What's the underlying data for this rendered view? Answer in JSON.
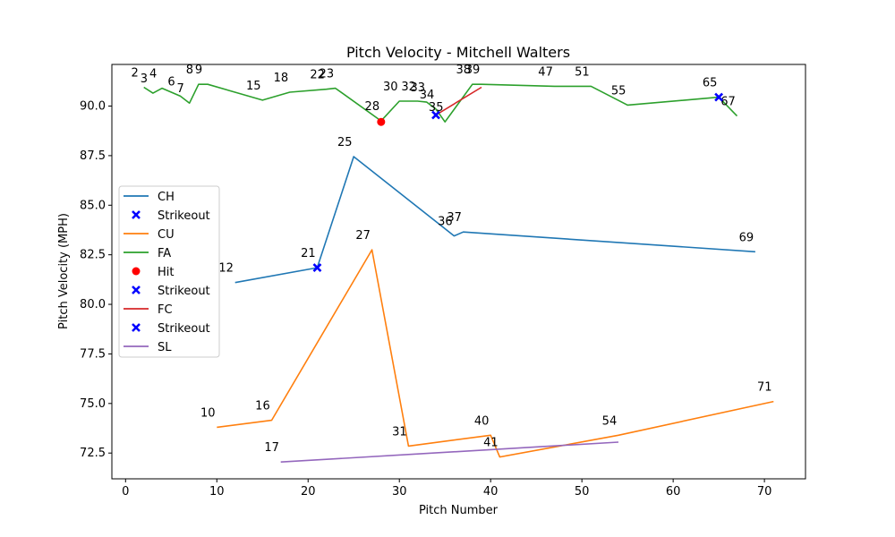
{
  "chart_data": {
    "type": "line",
    "title": "Pitch Velocity - Mitchell Walters",
    "xlabel": "Pitch Number",
    "ylabel": "Pitch Velocity (MPH)",
    "xlim": [
      -1.5,
      74.5
    ],
    "ylim": [
      71.2,
      92.1
    ],
    "xticks": [
      0,
      10,
      20,
      30,
      40,
      50,
      60,
      70
    ],
    "yticks": [
      72.5,
      75.0,
      77.5,
      80.0,
      82.5,
      85.0,
      87.5,
      90.0
    ],
    "ytick_labels": [
      "72.5",
      "75.0",
      "77.5",
      "80.0",
      "82.5",
      "85.0",
      "87.5",
      "90.0"
    ],
    "grid": false,
    "legend_position": "center-left",
    "series": [
      {
        "name": "CH",
        "color": "#1f77b4",
        "x": [
          12,
          21,
          25,
          36,
          37,
          69
        ],
        "y": [
          81.1,
          81.85,
          87.45,
          83.45,
          83.65,
          82.65
        ],
        "labels": [
          "12",
          "21",
          "25",
          "36",
          "37",
          "69"
        ]
      },
      {
        "name": "CU",
        "color": "#ff7f0e",
        "x": [
          10,
          16,
          27,
          31,
          40,
          41,
          54,
          71
        ],
        "y": [
          73.8,
          74.15,
          82.75,
          72.85,
          73.4,
          72.3,
          73.4,
          75.1
        ],
        "labels": [
          "10",
          "16",
          "27",
          "31",
          "40",
          "41",
          "54",
          "71"
        ]
      },
      {
        "name": "FA",
        "color": "#2ca02c",
        "x": [
          2,
          3,
          4,
          6,
          7,
          8,
          9,
          15,
          18,
          22,
          23,
          28,
          30,
          32,
          33,
          34,
          35,
          38,
          39,
          47,
          51,
          55,
          65,
          67
        ],
        "y": [
          90.95,
          90.65,
          90.9,
          90.5,
          90.15,
          91.1,
          91.1,
          90.3,
          90.7,
          90.85,
          90.9,
          89.25,
          90.25,
          90.25,
          90.2,
          89.85,
          89.2,
          91.1,
          91.1,
          91.0,
          91.0,
          90.05,
          90.45,
          89.5
        ],
        "labels": [
          "2",
          "3",
          "4",
          "6",
          "7",
          "8",
          "9",
          "15",
          "18",
          "22",
          "23",
          "28",
          "30",
          "32",
          "33",
          "34",
          "35",
          "38",
          "39",
          "47",
          "51",
          "55",
          "65",
          "67"
        ]
      },
      {
        "name": "FC",
        "color": "#d62728",
        "x": [
          34,
          39
        ],
        "y": [
          89.55,
          90.95
        ],
        "labels": []
      },
      {
        "name": "SL",
        "color": "#9467bd",
        "x": [
          17,
          54
        ],
        "y": [
          72.05,
          73.05
        ],
        "labels": [
          "17"
        ]
      }
    ],
    "markers": [
      {
        "name": "Strikeout",
        "marker": "x",
        "color": "#0000ff",
        "x": [
          21,
          65
        ],
        "y": [
          81.85,
          90.45
        ]
      },
      {
        "name": "Hit",
        "marker": "o",
        "color": "#ff0000",
        "x": [
          28
        ],
        "y": [
          89.2
        ]
      },
      {
        "name": "Strikeout",
        "marker": "x",
        "color": "#0000ff",
        "x": [
          34
        ],
        "y": [
          89.55
        ]
      }
    ],
    "legend": [
      {
        "label": "CH",
        "kind": "line",
        "color": "#1f77b4"
      },
      {
        "label": "Strikeout",
        "kind": "x",
        "color": "#0000ff"
      },
      {
        "label": "CU",
        "kind": "line",
        "color": "#ff7f0e"
      },
      {
        "label": "FA",
        "kind": "line",
        "color": "#2ca02c"
      },
      {
        "label": "Hit",
        "kind": "o",
        "color": "#ff0000"
      },
      {
        "label": "Strikeout",
        "kind": "x",
        "color": "#0000ff"
      },
      {
        "label": "FC",
        "kind": "line",
        "color": "#d62728"
      },
      {
        "label": "Strikeout",
        "kind": "x",
        "color": "#0000ff"
      },
      {
        "label": "SL",
        "kind": "line",
        "color": "#9467bd"
      }
    ]
  }
}
